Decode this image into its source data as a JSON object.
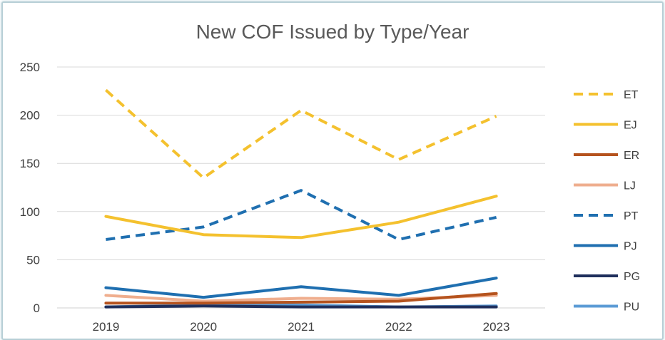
{
  "chart_data": {
    "type": "line",
    "title": "New COF Issued by Type/Year",
    "xlabel": "",
    "ylabel": "",
    "categories": [
      "2019",
      "2020",
      "2021",
      "2022",
      "2023"
    ],
    "ylim": [
      0,
      250
    ],
    "yticks": [
      0,
      50,
      100,
      150,
      200,
      250
    ],
    "grid": true,
    "legend_position": "right",
    "series": [
      {
        "name": "ET",
        "values": [
          226,
          135,
          205,
          154,
          199
        ],
        "color": "#F4C12E",
        "dashed": true
      },
      {
        "name": "EJ",
        "values": [
          95,
          76,
          73,
          89,
          116
        ],
        "color": "#F4C12E",
        "dashed": false
      },
      {
        "name": "ER",
        "values": [
          5,
          5,
          6,
          7,
          15
        ],
        "color": "#B5531E",
        "dashed": false
      },
      {
        "name": "LJ",
        "values": [
          13,
          7,
          10,
          9,
          13
        ],
        "color": "#EFAE8E",
        "dashed": false
      },
      {
        "name": "PT",
        "values": [
          71,
          84,
          122,
          71,
          94
        ],
        "color": "#1F6FB0",
        "dashed": true
      },
      {
        "name": "PJ",
        "values": [
          21,
          11,
          22,
          13,
          31
        ],
        "color": "#1F6FB0",
        "dashed": false
      },
      {
        "name": "PG",
        "values": [
          1,
          2,
          1,
          1,
          1
        ],
        "color": "#1F2F5C",
        "dashed": false
      },
      {
        "name": "PU",
        "values": [
          1,
          3,
          3,
          1,
          2
        ],
        "color": "#5B9BD5",
        "dashed": false
      }
    ]
  }
}
